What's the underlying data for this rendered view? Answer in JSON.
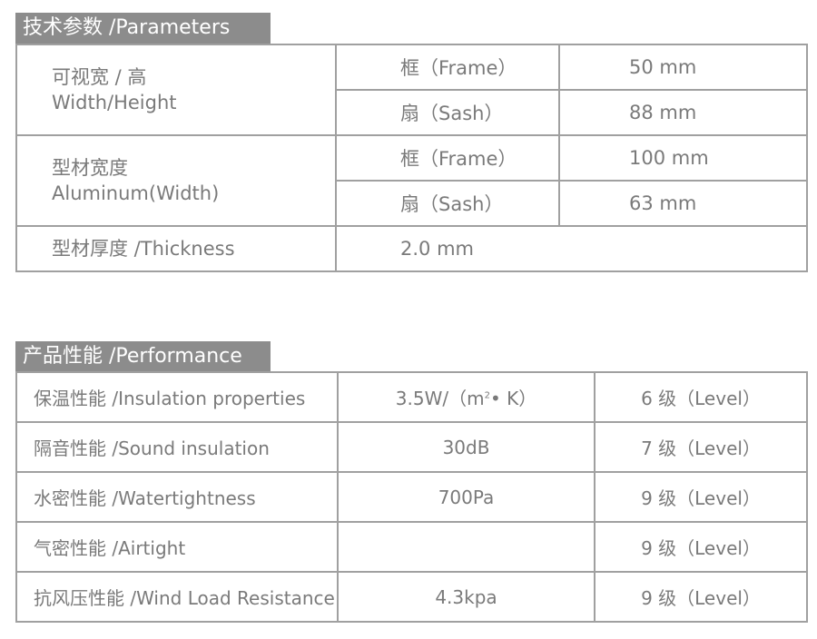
{
  "parameters": {
    "title": "技术参数 /Parameters",
    "rows": [
      {
        "label_cn": "可视宽 / 高",
        "label_en": "Width/Height",
        "sub": [
          {
            "part": "框（Frame）",
            "value": "50 mm"
          },
          {
            "part": "扇（Sash）",
            "value": "88 mm"
          }
        ]
      },
      {
        "label_cn": "型材宽度",
        "label_en": "Aluminum(Width)",
        "sub": [
          {
            "part": "框（Frame）",
            "value": "100 mm"
          },
          {
            "part": "扇（Sash）",
            "value": "63 mm"
          }
        ]
      }
    ],
    "thickness": {
      "label": "型材厚度 /Thickness",
      "value": "2.0 mm"
    }
  },
  "performance": {
    "title": "产品性能 /Performance",
    "rows": [
      {
        "label": "保温性能 /Insulation properties",
        "value": "3.5W/（m",
        "value_sup": "2",
        "value_tail": "• K）",
        "level": "6 级（Level）"
      },
      {
        "label": "隔音性能 /Sound insulation",
        "value": "30dB",
        "level": "7 级（Level）"
      },
      {
        "label": "水密性能 /Watertightness",
        "value": "700Pa",
        "level": "9 级（Level）"
      },
      {
        "label": "气密性能 /Airtight",
        "value": "",
        "level": "9 级（Level）"
      },
      {
        "label": "抗风压性能 /Wind Load Resistance",
        "value": "4.3kpa",
        "level": "9 级（Level）"
      }
    ]
  }
}
